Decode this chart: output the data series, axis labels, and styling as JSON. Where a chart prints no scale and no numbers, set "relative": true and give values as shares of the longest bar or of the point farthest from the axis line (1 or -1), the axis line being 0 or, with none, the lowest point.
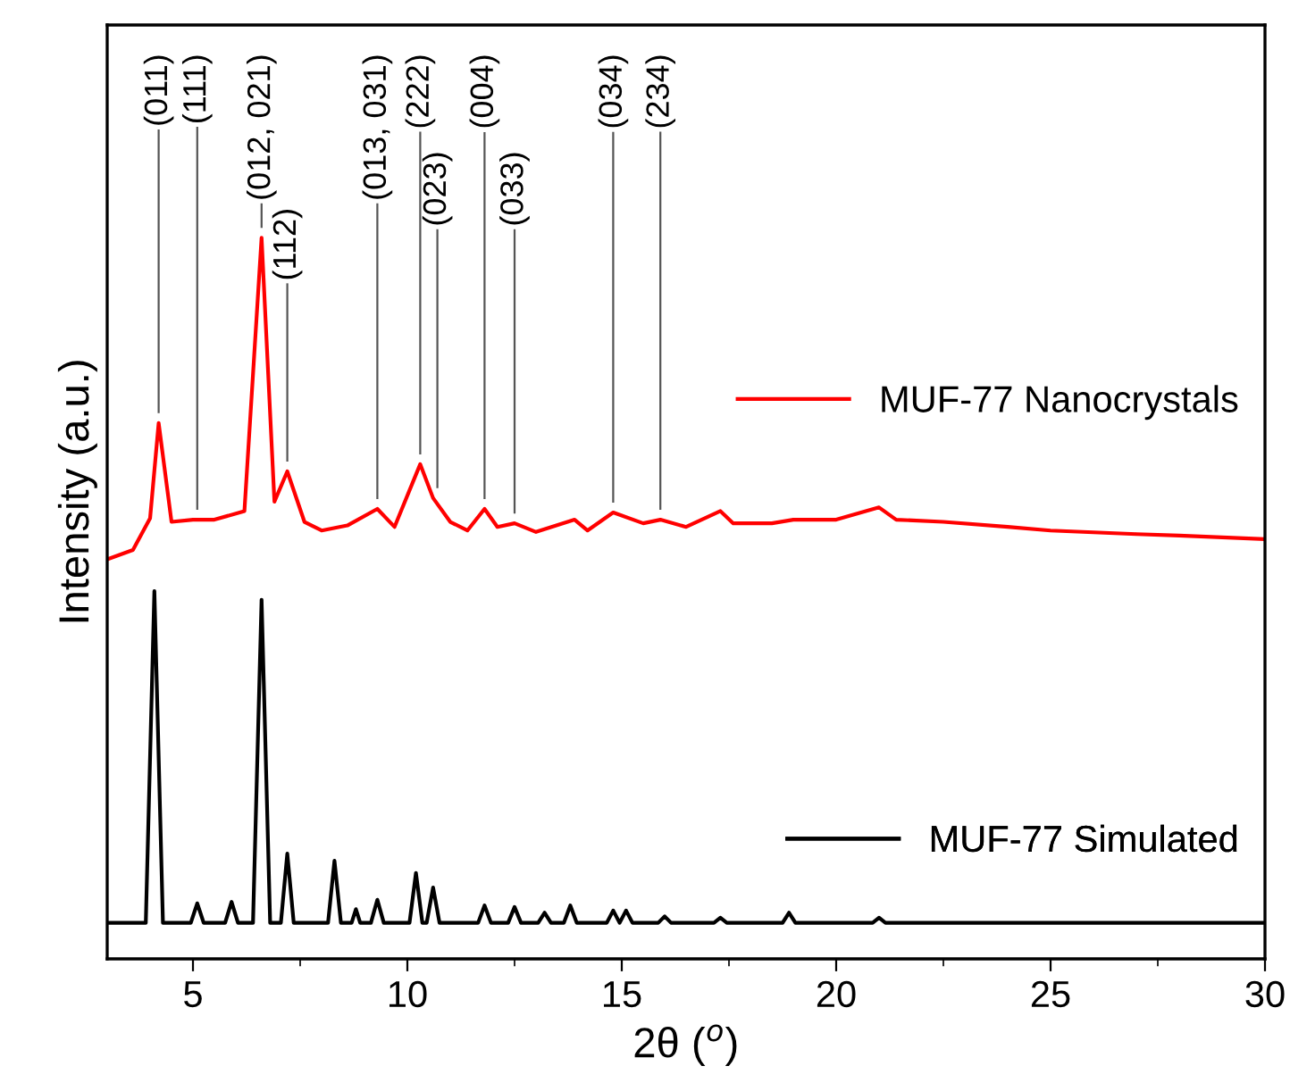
{
  "chart_data": {
    "type": "line",
    "relative": true,
    "xlabel": "2θ ($^{o}$)",
    "ylabel": "Intensity (a.u.)",
    "xlim": [
      3,
      30
    ],
    "xticks": [
      5,
      10,
      15,
      20,
      25,
      30
    ],
    "grid": false,
    "legend": "right",
    "marker": "none",
    "line_style": "solid",
    "series": [
      {
        "name": "MUF-77 Nanocrystals",
        "color": "#ff0000",
        "x": [
          3,
          3.6,
          4.0,
          4.2,
          4.5,
          5.0,
          5.5,
          6.2,
          6.6,
          6.9,
          7.2,
          7.6,
          8.0,
          8.6,
          9.3,
          9.7,
          10.3,
          10.6,
          11.0,
          11.4,
          11.8,
          12.1,
          12.5,
          13.0,
          13.9,
          14.2,
          14.8,
          15.5,
          15.9,
          16.5,
          17.3,
          17.6,
          18.5,
          19.0,
          20.0,
          21.0,
          21.4,
          22.5,
          24.0,
          25.0,
          27.0,
          28.0,
          30
        ],
        "values": [
          0.554,
          0.567,
          0.611,
          0.743,
          0.606,
          0.609,
          0.609,
          0.621,
          1,
          0.634,
          0.676,
          0.606,
          0.594,
          0.601,
          0.624,
          0.599,
          0.686,
          0.639,
          0.606,
          0.594,
          0.624,
          0.599,
          0.604,
          0.592,
          0.609,
          0.594,
          0.619,
          0.604,
          0.609,
          0.599,
          0.621,
          0.604,
          0.604,
          0.609,
          0.609,
          0.626,
          0.609,
          0.606,
          0.599,
          0.594,
          0.589,
          0.587,
          0.582
        ]
      },
      {
        "name": "MUF-77 Simulated",
        "color": "#000000",
        "x": [
          3,
          3.9,
          4.1,
          4.3,
          4.95,
          5.1,
          5.25,
          5.75,
          5.9,
          6.05,
          6.4,
          6.6,
          6.8,
          7.05,
          7.2,
          7.35,
          8.15,
          8.3,
          8.45,
          8.7,
          8.8,
          8.9,
          9.15,
          9.3,
          9.45,
          10.05,
          10.2,
          10.35,
          10.45,
          10.6,
          10.75,
          11.65,
          11.8,
          11.95,
          12.35,
          12.5,
          12.65,
          13.05,
          13.2,
          13.35,
          13.65,
          13.8,
          13.95,
          14.65,
          14.8,
          14.95,
          15.1,
          15.25,
          15.85,
          16.0,
          16.15,
          17.15,
          17.3,
          17.45,
          18.75,
          18.9,
          19.05,
          20.85,
          21.0,
          21.15,
          30
        ],
        "values": [
          0.05,
          0.05,
          0.51,
          0.05,
          0.05,
          0.077,
          0.05,
          0.05,
          0.079,
          0.05,
          0.05,
          0.498,
          0.05,
          0.05,
          0.146,
          0.05,
          0.05,
          0.136,
          0.05,
          0.05,
          0.069,
          0.05,
          0.05,
          0.082,
          0.05,
          0.05,
          0.119,
          0.05,
          0.05,
          0.099,
          0.05,
          0.05,
          0.074,
          0.05,
          0.05,
          0.072,
          0.05,
          0.05,
          0.064,
          0.05,
          0.05,
          0.074,
          0.05,
          0.05,
          0.067,
          0.05,
          0.067,
          0.05,
          0.05,
          0.059,
          0.05,
          0.05,
          0.057,
          0.05,
          0.05,
          0.064,
          0.05,
          0.05,
          0.057,
          0.05,
          0.05
        ]
      }
    ],
    "annotations": [
      {
        "text": "(011)",
        "x": 4.2,
        "y": 0.743
      },
      {
        "text": "(111)",
        "x": 5.1,
        "y": 0.609
      },
      {
        "text": "(012, 021)",
        "x": 6.6,
        "y": 1
      },
      {
        "text": "(112)",
        "x": 7.2,
        "y": 0.676
      },
      {
        "text": "(013, 031)",
        "x": 9.3,
        "y": 0.624
      },
      {
        "text": "(222)",
        "x": 10.3,
        "y": 0.686
      },
      {
        "text": "(023)",
        "x": 10.7,
        "y": 0.639
      },
      {
        "text": "(004)",
        "x": 11.8,
        "y": 0.624
      },
      {
        "text": "(033)",
        "x": 12.5,
        "y": 0.604
      },
      {
        "text": "(034)",
        "x": 14.8,
        "y": 0.619
      },
      {
        "text": "(234)",
        "x": 15.9,
        "y": 0.609
      }
    ]
  }
}
